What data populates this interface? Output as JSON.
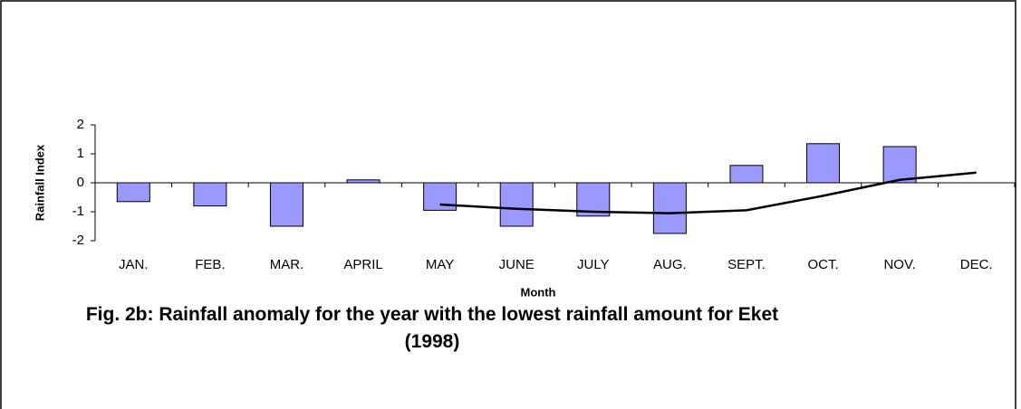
{
  "chart_data": {
    "type": "bar",
    "title": "Fig. 2b: Rainfall anomaly for the year with the lowest rainfall amount for Eket (1998)",
    "x_label": "Month",
    "y_label": "Rainfall Index",
    "categories": [
      "JAN.",
      "FEB.",
      "MAR.",
      "APRIL",
      "MAY",
      "JUNE",
      "JULY",
      "AUG.",
      "SEPT.",
      "OCT.",
      "NOV.",
      "DEC."
    ],
    "series": [
      {
        "type": "bar",
        "color": "#9999ff",
        "values": [
          -0.65,
          -0.8,
          -1.5,
          0.1,
          -0.95,
          -1.5,
          -1.15,
          -1.75,
          0.6,
          1.35,
          1.25,
          0
        ]
      },
      {
        "type": "line",
        "color": "#000000",
        "values": [
          null,
          null,
          null,
          null,
          -0.75,
          -0.9,
          -1.0,
          -1.05,
          -0.95,
          -0.45,
          0.1,
          0.35
        ]
      }
    ],
    "ylim": [
      -2,
      2
    ],
    "yticks": [
      -2,
      -1,
      0,
      1,
      2
    ]
  }
}
